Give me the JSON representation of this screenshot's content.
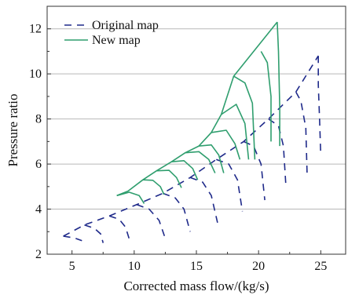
{
  "chart_data": {
    "type": "line",
    "xlabel": "Corrected mass flow/(kg/s)",
    "ylabel": "Pressure ratio",
    "xlim": [
      3,
      27
    ],
    "ylim": [
      2,
      13
    ],
    "xticks": [
      5,
      10,
      15,
      20,
      25
    ],
    "yticks": [
      2,
      4,
      6,
      8,
      10,
      12
    ],
    "grid": "horizontal",
    "legend_position": "top-left",
    "series": [
      {
        "name": "Original map",
        "style": "dashed",
        "color": "#1f2a8a",
        "surge_line": [
          [
            4.3,
            2.8
          ],
          [
            6.0,
            3.3
          ],
          [
            8.0,
            3.7
          ],
          [
            10.2,
            4.2
          ],
          [
            12.3,
            4.7
          ],
          [
            14.5,
            5.4
          ],
          [
            16.6,
            6.2
          ],
          [
            18.8,
            7.0
          ],
          [
            20.8,
            8.0
          ],
          [
            23.0,
            9.2
          ],
          [
            24.8,
            10.8
          ]
        ],
        "speed_lines": [
          [
            [
              4.3,
              2.8
            ],
            [
              5.2,
              2.72
            ],
            [
              5.8,
              2.6
            ]
          ],
          [
            [
              6.0,
              3.3
            ],
            [
              6.8,
              3.15
            ],
            [
              7.3,
              2.9
            ],
            [
              7.5,
              2.5
            ]
          ],
          [
            [
              8.0,
              3.7
            ],
            [
              8.8,
              3.55
            ],
            [
              9.3,
              3.2
            ],
            [
              9.7,
              2.5
            ]
          ],
          [
            [
              10.2,
              4.2
            ],
            [
              11.2,
              4.0
            ],
            [
              12.0,
              3.5
            ],
            [
              12.5,
              2.7
            ]
          ],
          [
            [
              12.3,
              4.7
            ],
            [
              13.3,
              4.5
            ],
            [
              14.0,
              4.0
            ],
            [
              14.5,
              3.0
            ]
          ],
          [
            [
              14.5,
              5.4
            ],
            [
              15.5,
              5.2
            ],
            [
              16.2,
              4.6
            ],
            [
              16.7,
              3.4
            ]
          ],
          [
            [
              16.6,
              6.2
            ],
            [
              17.6,
              6.0
            ],
            [
              18.3,
              5.3
            ],
            [
              18.7,
              3.9
            ]
          ],
          [
            [
              18.8,
              7.0
            ],
            [
              19.6,
              6.8
            ],
            [
              20.2,
              6.0
            ],
            [
              20.5,
              4.4
            ]
          ],
          [
            [
              20.8,
              8.0
            ],
            [
              21.6,
              7.7
            ],
            [
              22.0,
              6.8
            ],
            [
              22.2,
              5.0
            ]
          ],
          [
            [
              23.0,
              9.2
            ],
            [
              23.4,
              8.8
            ],
            [
              23.8,
              7.6
            ],
            [
              23.9,
              5.6
            ]
          ],
          [
            [
              24.8,
              10.8
            ],
            [
              24.8,
              9.5
            ],
            [
              24.9,
              8.0
            ],
            [
              25.0,
              6.4
            ]
          ]
        ]
      },
      {
        "name": "New map",
        "style": "solid",
        "color": "#2f9e6e",
        "surge_line": [
          [
            8.6,
            4.6
          ],
          [
            9.5,
            4.8
          ],
          [
            10.7,
            5.3
          ],
          [
            11.8,
            5.7
          ],
          [
            13.0,
            6.1
          ],
          [
            14.1,
            6.5
          ],
          [
            15.2,
            6.8
          ],
          [
            16.2,
            7.4
          ],
          [
            17.0,
            8.2
          ],
          [
            18.0,
            9.9
          ],
          [
            21.5,
            12.3
          ]
        ],
        "speed_lines": [
          [
            [
              8.6,
              4.6
            ],
            [
              9.6,
              4.75
            ],
            [
              10.4,
              4.6
            ],
            [
              10.8,
              4.25
            ]
          ],
          [
            [
              10.7,
              5.3
            ],
            [
              11.5,
              5.28
            ],
            [
              12.1,
              5.0
            ],
            [
              12.4,
              4.65
            ]
          ],
          [
            [
              11.8,
              5.7
            ],
            [
              12.8,
              5.72
            ],
            [
              13.4,
              5.4
            ],
            [
              13.8,
              4.95
            ]
          ],
          [
            [
              13.0,
              6.1
            ],
            [
              14.0,
              6.15
            ],
            [
              14.7,
              5.8
            ],
            [
              15.1,
              5.3
            ]
          ],
          [
            [
              14.1,
              6.5
            ],
            [
              15.2,
              6.55
            ],
            [
              16.0,
              6.2
            ],
            [
              16.5,
              5.6
            ]
          ],
          [
            [
              15.2,
              6.8
            ],
            [
              16.2,
              6.85
            ],
            [
              16.8,
              6.4
            ],
            [
              17.2,
              5.6
            ]
          ],
          [
            [
              16.2,
              7.4
            ],
            [
              17.4,
              7.5
            ],
            [
              18.1,
              6.9
            ],
            [
              18.5,
              6.2
            ]
          ],
          [
            [
              17.0,
              8.2
            ],
            [
              18.2,
              8.65
            ],
            [
              18.9,
              7.8
            ],
            [
              19.2,
              6.2
            ]
          ],
          [
            [
              18.0,
              9.9
            ],
            [
              18.9,
              9.6
            ],
            [
              19.5,
              8.7
            ],
            [
              19.7,
              6.2
            ]
          ],
          [
            [
              20.2,
              11.0
            ],
            [
              20.7,
              10.5
            ],
            [
              21.0,
              9.0
            ],
            [
              21.0,
              7.0
            ]
          ],
          [
            [
              21.5,
              12.3
            ],
            [
              21.6,
              11.0
            ],
            [
              21.7,
              8.5
            ],
            [
              21.7,
              6.8
            ]
          ]
        ]
      }
    ]
  }
}
